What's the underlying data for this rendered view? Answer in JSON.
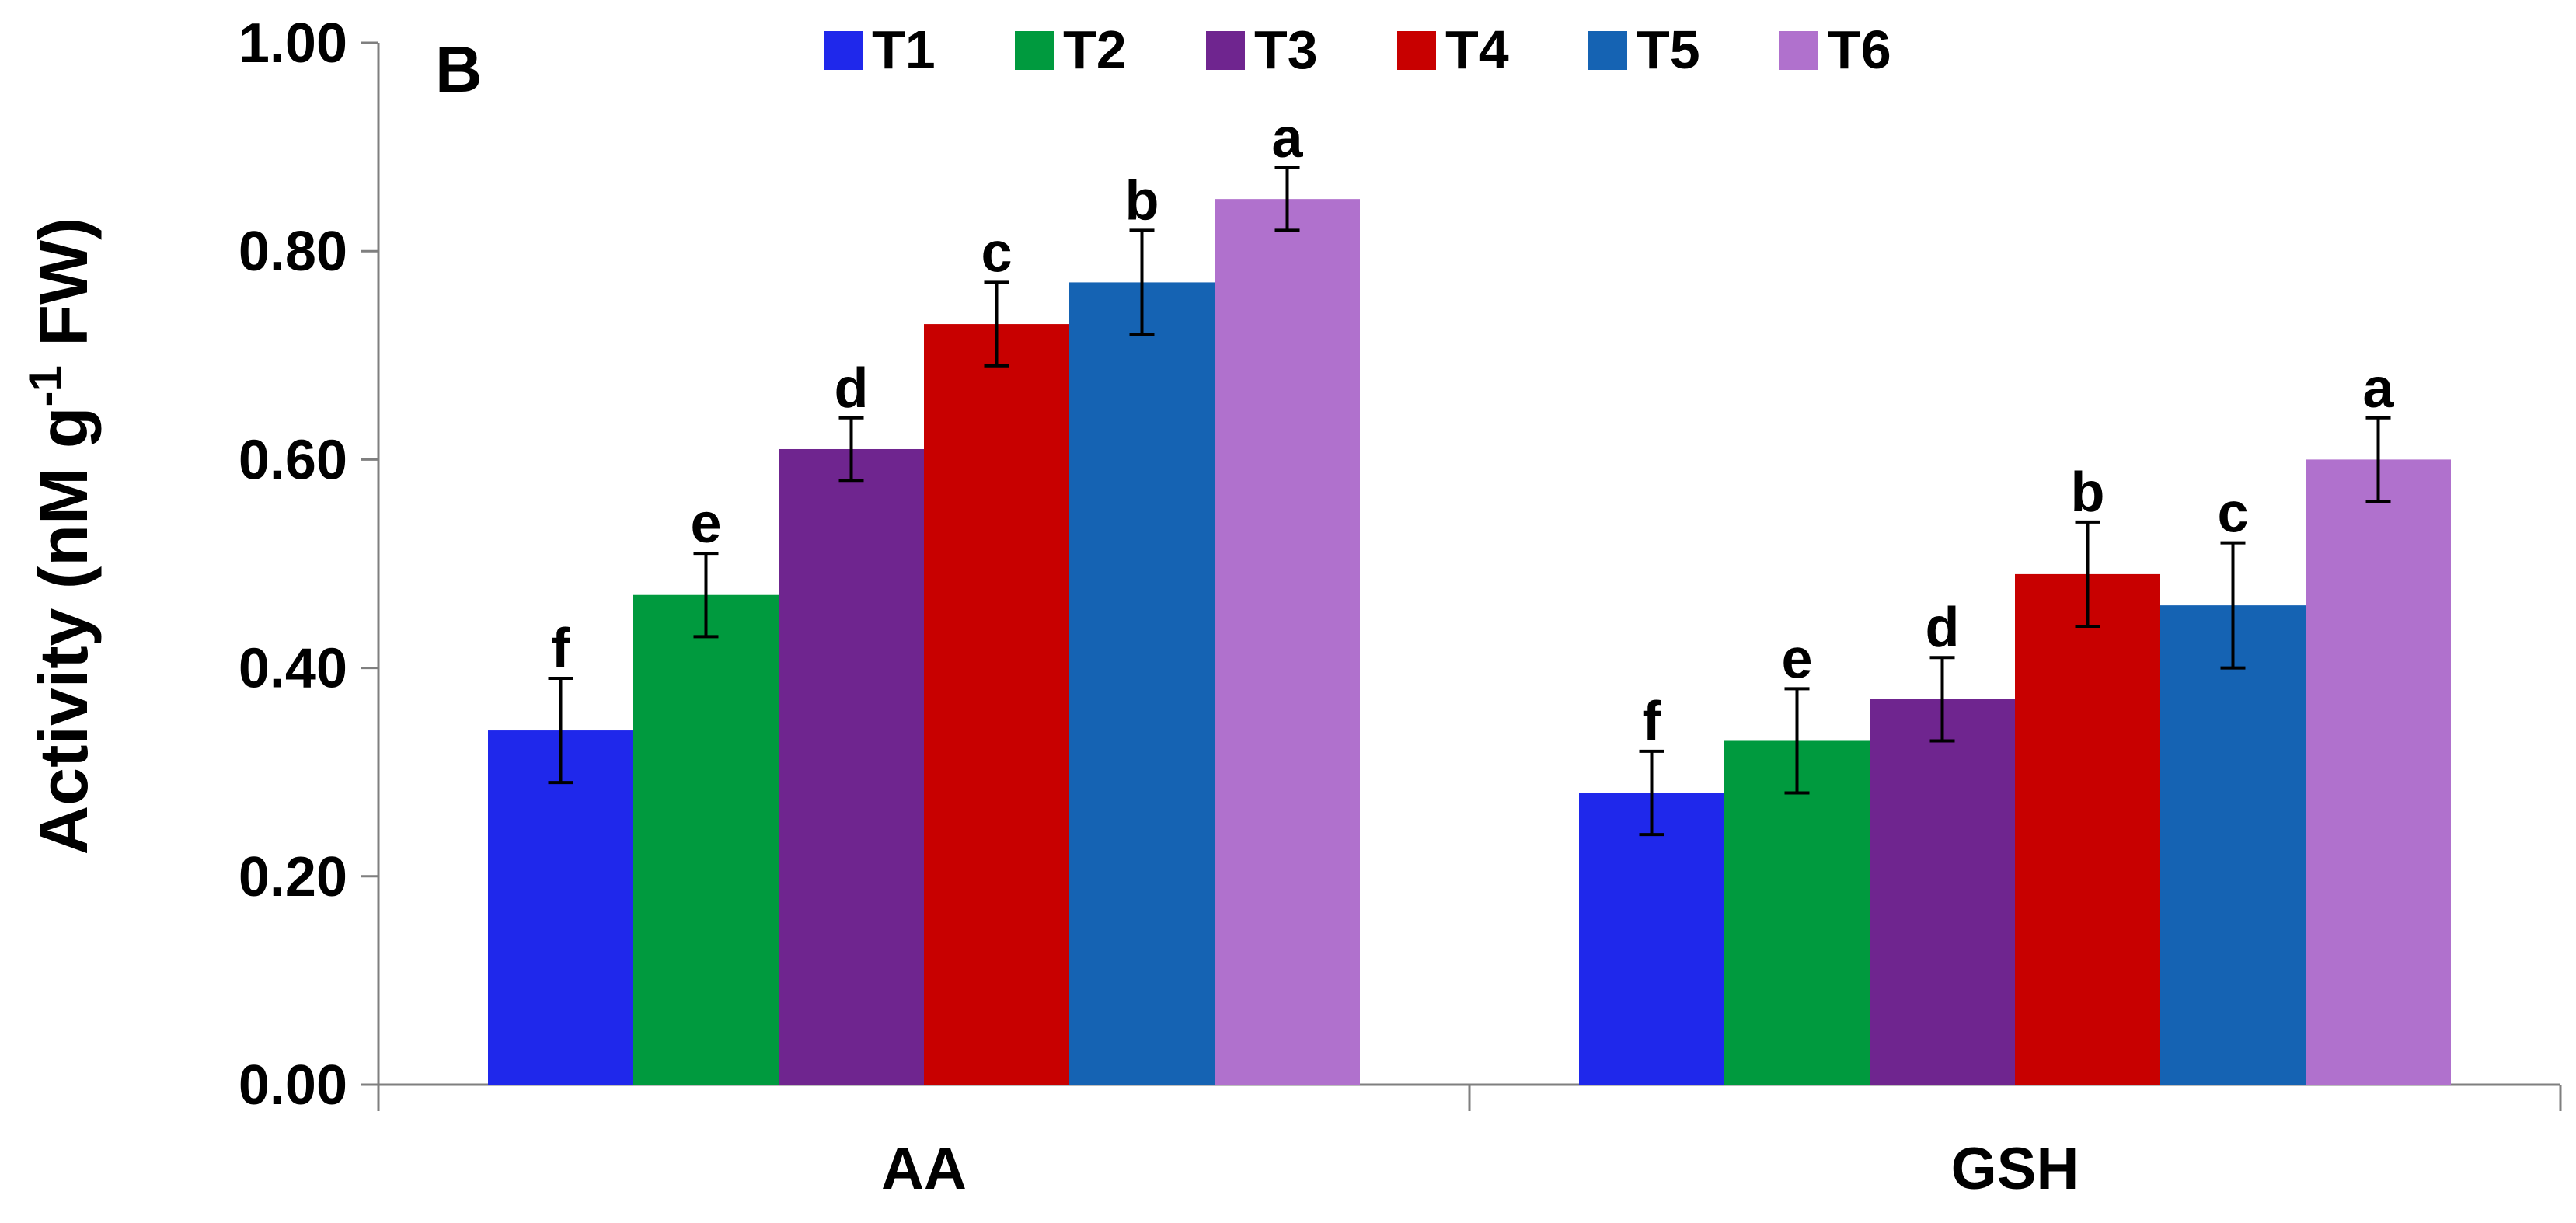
{
  "chart_data": {
    "type": "bar",
    "panel_label": "B",
    "title": "",
    "xlabel": "",
    "ylabel": {
      "main": "Activity (nM g",
      "superscript": "-1",
      "tail": " FW)"
    },
    "ylim": [
      0,
      1.0
    ],
    "yticks": [
      0.0,
      0.2,
      0.4,
      0.6,
      0.8,
      1.0
    ],
    "ytick_labels": [
      "0.00",
      "0.20",
      "0.40",
      "0.60",
      "0.80",
      "1.00"
    ],
    "grid": false,
    "legend_position": "top-center",
    "categories": [
      "AA",
      "GSH"
    ],
    "series": [
      {
        "name": "T1",
        "color": "#1F28EB",
        "values": [
          0.34,
          0.28
        ],
        "errors": [
          0.05,
          0.04
        ],
        "letters": [
          "f",
          "f"
        ]
      },
      {
        "name": "T2",
        "color": "#009A3E",
        "values": [
          0.47,
          0.33
        ],
        "errors": [
          0.04,
          0.05
        ],
        "letters": [
          "e",
          "e"
        ]
      },
      {
        "name": "T3",
        "color": "#6F258F",
        "values": [
          0.61,
          0.37
        ],
        "errors": [
          0.03,
          0.04
        ],
        "letters": [
          "d",
          "d"
        ]
      },
      {
        "name": "T4",
        "color": "#C80000",
        "values": [
          0.73,
          0.49
        ],
        "errors": [
          0.04,
          0.05
        ],
        "letters": [
          "c",
          "b"
        ]
      },
      {
        "name": "T5",
        "color": "#1563B3",
        "values": [
          0.77,
          0.46
        ],
        "errors": [
          0.05,
          0.06
        ],
        "letters": [
          "b",
          "c"
        ]
      },
      {
        "name": "T6",
        "color": "#B071CD",
        "values": [
          0.85,
          0.6
        ],
        "errors": [
          0.03,
          0.04
        ],
        "letters": [
          "a",
          "a"
        ]
      }
    ]
  }
}
